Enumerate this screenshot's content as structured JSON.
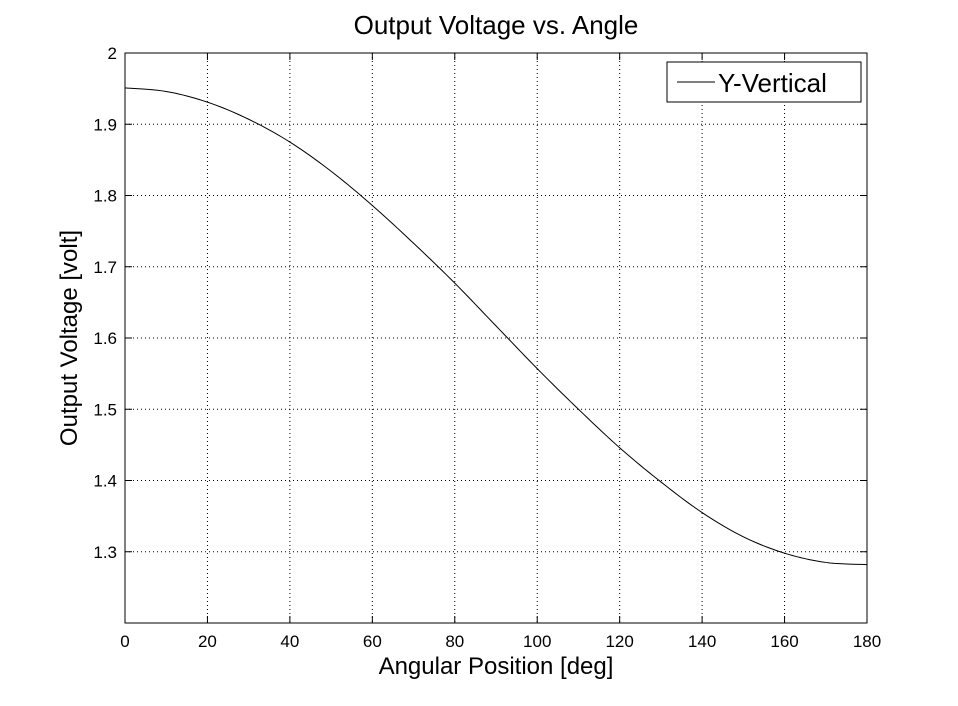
{
  "chart_data": {
    "type": "line",
    "title": "Output Voltage vs. Angle",
    "xlabel": "Angular Position [deg]",
    "ylabel": "Output Voltage [volt]",
    "xlim": [
      0,
      180
    ],
    "ylim": [
      1.2,
      2.0
    ],
    "xticks": [
      0,
      20,
      40,
      60,
      80,
      100,
      120,
      140,
      160,
      180
    ],
    "yticks": [
      1.3,
      1.4,
      1.5,
      1.6,
      1.7,
      1.8,
      1.9,
      2.0
    ],
    "xtick_labels": [
      "0",
      "20",
      "40",
      "60",
      "80",
      "100",
      "120",
      "140",
      "160",
      "180"
    ],
    "ytick_labels": [
      "1.3",
      "1.4",
      "1.5",
      "1.6",
      "1.7",
      "1.8",
      "1.9",
      "2"
    ],
    "grid": true,
    "legend_position": "top-right",
    "series": [
      {
        "name": "Y-Vertical",
        "color": "#000000",
        "x": [
          0,
          10,
          20,
          30,
          40,
          50,
          60,
          70,
          80,
          90,
          100,
          110,
          120,
          130,
          140,
          150,
          160,
          170,
          180
        ],
        "y": [
          1.951,
          1.946,
          1.931,
          1.907,
          1.875,
          1.834,
          1.786,
          1.733,
          1.677,
          1.617,
          1.557,
          1.5,
          1.446,
          1.398,
          1.355,
          1.321,
          1.298,
          1.285,
          1.282
        ]
      }
    ]
  }
}
